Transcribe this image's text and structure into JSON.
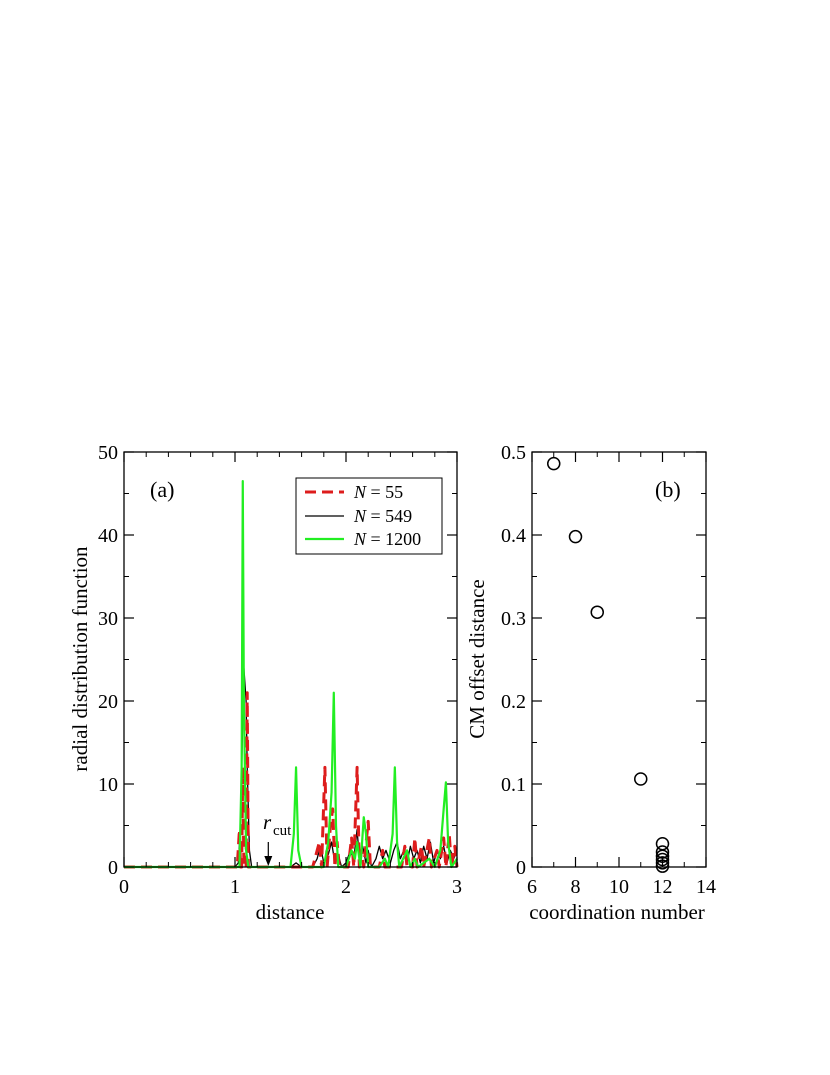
{
  "chart_data": [
    {
      "type": "line",
      "panel_label": "(a)",
      "xlabel": "distance",
      "ylabel": "radial distribution function",
      "xlim": [
        0,
        3
      ],
      "ylim": [
        0,
        50
      ],
      "xticks": [
        0,
        1,
        2,
        3
      ],
      "yticks": [
        0,
        10,
        20,
        30,
        40,
        50
      ],
      "grid": false,
      "legend_position": "top-right",
      "annotation": {
        "text": "r",
        "subscript": "cut",
        "x": 1.3,
        "arrow": "down"
      },
      "series": [
        {
          "name": "N = 55",
          "legend_var": "N",
          "legend_value": " = 55",
          "color": "#dd1c1c",
          "style": "dashed",
          "points": [
            [
              0,
              0
            ],
            [
              1.0,
              0
            ],
            [
              1.02,
              0
            ],
            [
              1.04,
              4.5
            ],
            [
              1.05,
              0
            ],
            [
              1.06,
              0
            ],
            [
              1.07,
              12
            ],
            [
              1.08,
              0
            ],
            [
              1.1,
              0
            ],
            [
              1.11,
              21
            ],
            [
              1.12,
              0
            ],
            [
              1.2,
              0
            ],
            [
              1.7,
              0
            ],
            [
              1.76,
              3
            ],
            [
              1.78,
              0
            ],
            [
              1.81,
              12
            ],
            [
              1.83,
              0
            ],
            [
              1.86,
              5
            ],
            [
              1.88,
              7
            ],
            [
              1.9,
              0
            ],
            [
              1.92,
              3
            ],
            [
              1.94,
              0
            ],
            [
              2.02,
              0
            ],
            [
              2.05,
              3.5
            ],
            [
              2.07,
              0
            ],
            [
              2.1,
              12
            ],
            [
              2.12,
              0
            ],
            [
              2.14,
              2
            ],
            [
              2.16,
              0
            ],
            [
              2.2,
              5.5
            ],
            [
              2.22,
              0
            ],
            [
              2.3,
              0
            ],
            [
              2.33,
              2
            ],
            [
              2.35,
              0
            ],
            [
              2.5,
              0
            ],
            [
              2.53,
              2.5
            ],
            [
              2.55,
              0
            ],
            [
              2.6,
              0
            ],
            [
              2.62,
              3.5
            ],
            [
              2.64,
              0
            ],
            [
              2.68,
              2.5
            ],
            [
              2.7,
              0
            ],
            [
              2.75,
              3.5
            ],
            [
              2.77,
              0
            ],
            [
              2.82,
              2
            ],
            [
              2.84,
              0
            ],
            [
              2.88,
              3.5
            ],
            [
              2.9,
              0
            ],
            [
              2.93,
              4
            ],
            [
              2.95,
              0
            ],
            [
              2.98,
              2.5
            ],
            [
              3.0,
              0
            ]
          ]
        },
        {
          "name": "N = 549",
          "legend_var": "N",
          "legend_value": " = 549",
          "color": "#000000",
          "style": "solid",
          "points": [
            [
              0,
              0
            ],
            [
              1.0,
              0
            ],
            [
              1.03,
              0.5
            ],
            [
              1.05,
              5
            ],
            [
              1.07,
              18
            ],
            [
              1.08,
              24
            ],
            [
              1.1,
              20
            ],
            [
              1.11,
              12
            ],
            [
              1.13,
              2
            ],
            [
              1.15,
              0
            ],
            [
              1.5,
              0
            ],
            [
              1.55,
              0.5
            ],
            [
              1.6,
              0
            ],
            [
              1.7,
              0
            ],
            [
              1.74,
              1
            ],
            [
              1.77,
              2.5
            ],
            [
              1.8,
              0.5
            ],
            [
              1.84,
              1.5
            ],
            [
              1.87,
              3
            ],
            [
              1.9,
              0.5
            ],
            [
              1.93,
              1.5
            ],
            [
              1.96,
              0
            ],
            [
              2.0,
              0.5
            ],
            [
              2.04,
              2
            ],
            [
              2.07,
              1
            ],
            [
              2.1,
              4.5
            ],
            [
              2.12,
              1
            ],
            [
              2.15,
              2.5
            ],
            [
              2.18,
              0.5
            ],
            [
              2.2,
              2
            ],
            [
              2.23,
              0
            ],
            [
              2.27,
              1
            ],
            [
              2.3,
              2.5
            ],
            [
              2.33,
              1
            ],
            [
              2.36,
              2
            ],
            [
              2.4,
              0.5
            ],
            [
              2.43,
              2
            ],
            [
              2.46,
              3
            ],
            [
              2.49,
              1
            ],
            [
              2.52,
              2
            ],
            [
              2.55,
              0.5
            ],
            [
              2.58,
              2.5
            ],
            [
              2.61,
              1
            ],
            [
              2.64,
              2
            ],
            [
              2.67,
              0.5
            ],
            [
              2.7,
              2.5
            ],
            [
              2.73,
              1
            ],
            [
              2.76,
              3
            ],
            [
              2.79,
              0.5
            ],
            [
              2.82,
              2
            ],
            [
              2.85,
              1
            ],
            [
              2.88,
              2.5
            ],
            [
              2.91,
              0.5
            ],
            [
              2.94,
              2
            ],
            [
              2.97,
              1
            ],
            [
              3.0,
              2
            ]
          ]
        },
        {
          "name": "N = 1200",
          "legend_var": "N",
          "legend_value": " = 1200",
          "color": "#22ee22",
          "style": "solid",
          "points": [
            [
              0,
              0
            ],
            [
              1.0,
              0
            ],
            [
              1.04,
              0
            ],
            [
              1.06,
              12
            ],
            [
              1.07,
              46.5
            ],
            [
              1.08,
              20
            ],
            [
              1.1,
              2
            ],
            [
              1.12,
              0
            ],
            [
              1.5,
              0
            ],
            [
              1.53,
              4
            ],
            [
              1.55,
              12
            ],
            [
              1.57,
              2
            ],
            [
              1.6,
              0
            ],
            [
              1.8,
              0
            ],
            [
              1.84,
              3
            ],
            [
              1.87,
              9
            ],
            [
              1.89,
              21
            ],
            [
              1.91,
              5
            ],
            [
              1.93,
              0
            ],
            [
              2.0,
              0
            ],
            [
              2.05,
              2
            ],
            [
              2.08,
              1
            ],
            [
              2.1,
              3
            ],
            [
              2.13,
              0
            ],
            [
              2.16,
              6
            ],
            [
              2.18,
              4
            ],
            [
              2.2,
              0
            ],
            [
              2.3,
              0
            ],
            [
              2.35,
              1
            ],
            [
              2.38,
              0
            ],
            [
              2.42,
              4
            ],
            [
              2.44,
              12
            ],
            [
              2.46,
              3
            ],
            [
              2.48,
              0
            ],
            [
              2.55,
              2
            ],
            [
              2.58,
              0
            ],
            [
              2.62,
              1
            ],
            [
              2.65,
              0
            ],
            [
              2.75,
              1
            ],
            [
              2.8,
              0
            ],
            [
              2.85,
              2
            ],
            [
              2.88,
              7
            ],
            [
              2.9,
              10.2
            ],
            [
              2.92,
              3
            ],
            [
              2.95,
              0
            ],
            [
              3.0,
              1
            ]
          ]
        }
      ]
    },
    {
      "type": "scatter",
      "panel_label": "(b)",
      "xlabel": "coordination number",
      "ylabel": "CM offset distance",
      "xlim": [
        6,
        14
      ],
      "ylim": [
        0,
        0.5
      ],
      "xticks": [
        6,
        8,
        10,
        12,
        14
      ],
      "yticks": [
        0,
        0.1,
        0.2,
        0.3,
        0.4,
        0.5
      ],
      "ytick_labels": [
        "0",
        "0.1",
        "0.2",
        "0.3",
        "0.4",
        "0.5"
      ],
      "grid": false,
      "marker": "open-circle",
      "points": [
        [
          7,
          0.486
        ],
        [
          8,
          0.398
        ],
        [
          9,
          0.307
        ],
        [
          11,
          0.106
        ],
        [
          12,
          0.028
        ],
        [
          12,
          0.018
        ],
        [
          12,
          0.013
        ],
        [
          12,
          0.009
        ],
        [
          12,
          0.005
        ],
        [
          12,
          0.001
        ]
      ]
    }
  ]
}
